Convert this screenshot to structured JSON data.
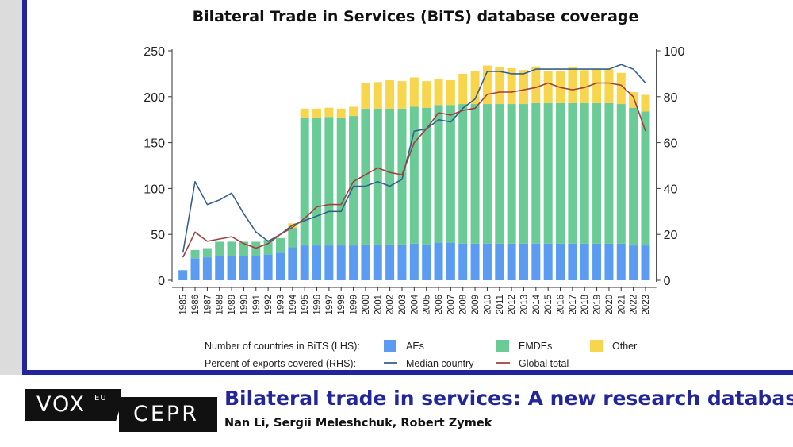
{
  "chart_data": {
    "type": "bar",
    "title": "Bilateral Trade in Services (BiTS) database coverage",
    "categories": [
      "1985",
      "1986",
      "1987",
      "1988",
      "1989",
      "1990",
      "1991",
      "1992",
      "1993",
      "1994",
      "1995",
      "1996",
      "1997",
      "1998",
      "1999",
      "2000",
      "2001",
      "2002",
      "2003",
      "2004",
      "2005",
      "2006",
      "2007",
      "2008",
      "2009",
      "2010",
      "2011",
      "2012",
      "2013",
      "2014",
      "2015",
      "2016",
      "2017",
      "2018",
      "2019",
      "2020",
      "2021",
      "2022",
      "2023"
    ],
    "stacked": true,
    "series": [
      {
        "name": "AEs",
        "axis": "left",
        "color": "#5b9cf2",
        "values": [
          11,
          24,
          25,
          26,
          26,
          26,
          26,
          28,
          30,
          36,
          38,
          38,
          38,
          38,
          38,
          39,
          39,
          39,
          39,
          40,
          39,
          41,
          41,
          40,
          40,
          40,
          40,
          40,
          40,
          40,
          40,
          40,
          40,
          40,
          40,
          40,
          40,
          38,
          38
        ]
      },
      {
        "name": "EMDEs",
        "axis": "left",
        "color": "#6acb96",
        "values": [
          0,
          9,
          10,
          16,
          16,
          16,
          16,
          16,
          16,
          21,
          139,
          139,
          140,
          139,
          141,
          148,
          148,
          148,
          148,
          149,
          149,
          150,
          150,
          152,
          152,
          152,
          152,
          152,
          152,
          153,
          153,
          153,
          153,
          153,
          153,
          153,
          152,
          150,
          146
        ]
      },
      {
        "name": "Other",
        "axis": "left",
        "color": "#f7d64e",
        "values": [
          0,
          0,
          0,
          0,
          0,
          0,
          0,
          0,
          0,
          5,
          10,
          10,
          10,
          10,
          10,
          28,
          29,
          31,
          30,
          32,
          29,
          28,
          27,
          33,
          36,
          42,
          40,
          39,
          37,
          40,
          35,
          35,
          39,
          36,
          37,
          37,
          34,
          17,
          18
        ]
      }
    ],
    "lines": [
      {
        "name": "Median country",
        "axis": "right",
        "color": "#35608c",
        "values": [
          12,
          43,
          33,
          35,
          38,
          29,
          21,
          17,
          20,
          24,
          26,
          28,
          30,
          30,
          41,
          41,
          43,
          41,
          44,
          65,
          66,
          70,
          69,
          75,
          79,
          91,
          91,
          90,
          90,
          92,
          92,
          92,
          92,
          92,
          92,
          92,
          94,
          92,
          86
        ]
      },
      {
        "name": "Global total",
        "axis": "right",
        "color": "#a04040",
        "values": [
          10,
          21,
          17,
          18,
          19,
          16,
          14,
          16,
          20,
          23,
          27,
          32,
          33,
          33,
          43,
          46,
          49,
          47,
          46,
          60,
          66,
          73,
          72,
          74,
          75,
          81,
          82,
          82,
          83,
          84,
          86,
          84,
          83,
          84,
          86,
          86,
          85,
          80,
          65
        ]
      }
    ],
    "ylim_left": [
      0,
      250
    ],
    "yticks_left": [
      "0",
      "50",
      "100",
      "150",
      "200",
      "250"
    ],
    "ylim_right": [
      0,
      100
    ],
    "yticks_right": [
      "0",
      "20",
      "40",
      "60",
      "80",
      "100"
    ],
    "legend": {
      "row1_label": "Number of countries in BiTS (LHS):",
      "row2_label": "Percent of exports covered (RHS):",
      "placement": "bottom"
    }
  },
  "footer": {
    "vox_label": "VOX",
    "eu_label": "EU",
    "cepr_label": "CEPR",
    "article_title": "Bilateral trade in services: A new research database",
    "authors": "Nan Li, Sergii Meleshchuk, Robert Zymek"
  },
  "colors": {
    "accent": "#23269a",
    "frame": "#dcdcdc"
  }
}
